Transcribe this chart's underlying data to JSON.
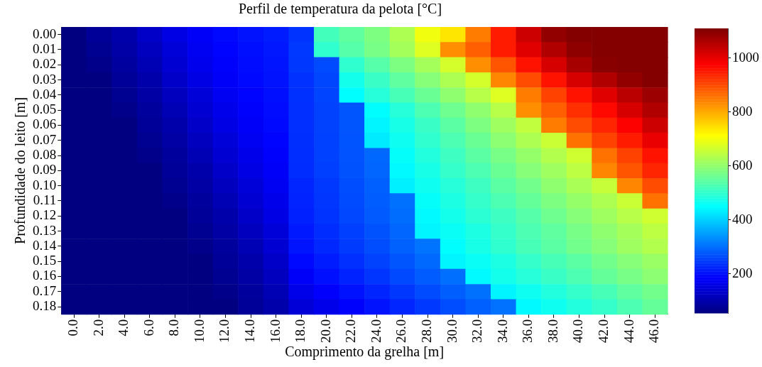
{
  "chart_data": {
    "type": "heatmap",
    "title": "Perfil de temperatura da pelota [°C]",
    "xlabel": "Comprimento da grelha [m]",
    "ylabel": "Profundidade do leito [m]",
    "categories": [
      "0.0",
      "2.0",
      "4.0",
      "6.0",
      "8.0",
      "10.0",
      "12.0",
      "14.0",
      "16.0",
      "18.0",
      "20.0",
      "22.0",
      "24.0",
      "26.0",
      "28.0",
      "30.0",
      "32.0",
      "34.0",
      "36.0",
      "38.0",
      "40.0",
      "42.0",
      "44.0",
      "46.0"
    ],
    "y_categories": [
      "0.00",
      "0.01",
      "0.02",
      "0.03",
      "0.04",
      "0.05",
      "0.06",
      "0.07",
      "0.08",
      "0.09",
      "0.10",
      "0.11",
      "0.12",
      "0.13",
      "0.14",
      "0.15",
      "0.16",
      "0.17",
      "0.18"
    ],
    "cells": [
      [
        57,
        80,
        100,
        130,
        160,
        180,
        195,
        205,
        215,
        240,
        520,
        550,
        580,
        630,
        700,
        740,
        850,
        950,
        1030,
        1090,
        1105,
        1105,
        1105,
        1105
      ],
      [
        57,
        73,
        95,
        120,
        148,
        173,
        190,
        201,
        211,
        245,
        500,
        540,
        575,
        620,
        680,
        830,
        880,
        950,
        1010,
        1060,
        1095,
        1105,
        1105,
        1105
      ],
      [
        57,
        66,
        87,
        110,
        140,
        167,
        185,
        198,
        208,
        244,
        264,
        500,
        540,
        580,
        620,
        670,
        830,
        890,
        960,
        1020,
        1070,
        1100,
        1105,
        1105
      ],
      [
        57,
        57,
        80,
        100,
        130,
        160,
        180,
        195,
        205,
        238,
        258,
        470,
        510,
        550,
        590,
        630,
        670,
        840,
        900,
        960,
        1020,
        1060,
        1090,
        1105
      ],
      [
        57,
        57,
        73,
        94,
        120,
        148,
        173,
        190,
        201,
        237,
        257,
        450,
        490,
        525,
        560,
        600,
        640,
        680,
        850,
        910,
        960,
        1010,
        1050,
        1080
      ],
      [
        57,
        57,
        66,
        86,
        110,
        140,
        166,
        185,
        198,
        235,
        255,
        275,
        450,
        490,
        530,
        565,
        600,
        640,
        830,
        880,
        930,
        970,
        1020,
        1060
      ],
      [
        57,
        57,
        57,
        80,
        100,
        130,
        160,
        180,
        195,
        235,
        255,
        275,
        440,
        475,
        510,
        545,
        580,
        615,
        650,
        850,
        900,
        940,
        980,
        1030
      ],
      [
        57,
        57,
        57,
        73,
        94,
        120,
        148,
        173,
        190,
        234,
        254,
        274,
        430,
        465,
        500,
        530,
        560,
        595,
        630,
        660,
        860,
        910,
        950,
        1000
      ],
      [
        57,
        57,
        57,
        66,
        86,
        110,
        140,
        166,
        185,
        233,
        253,
        273,
        293,
        455,
        485,
        515,
        545,
        575,
        605,
        635,
        665,
        860,
        910,
        960
      ],
      [
        57,
        57,
        57,
        57,
        80,
        100,
        130,
        160,
        180,
        232,
        252,
        272,
        292,
        445,
        475,
        505,
        530,
        560,
        590,
        615,
        645,
        840,
        890,
        940
      ],
      [
        57,
        57,
        57,
        57,
        73,
        94,
        120,
        148,
        173,
        225,
        245,
        265,
        285,
        435,
        465,
        490,
        515,
        545,
        570,
        600,
        625,
        655,
        840,
        900
      ],
      [
        57,
        57,
        57,
        57,
        66,
        86,
        110,
        140,
        166,
        223,
        243,
        263,
        283,
        303,
        455,
        480,
        505,
        530,
        555,
        580,
        605,
        630,
        660,
        860
      ],
      [
        57,
        57,
        57,
        57,
        57,
        80,
        100,
        130,
        160,
        220,
        240,
        260,
        280,
        300,
        445,
        470,
        495,
        515,
        540,
        565,
        590,
        615,
        640,
        665
      ],
      [
        57,
        57,
        57,
        57,
        57,
        73,
        94,
        120,
        148,
        212,
        232,
        252,
        272,
        292,
        440,
        460,
        480,
        505,
        530,
        550,
        575,
        600,
        620,
        645
      ],
      [
        57,
        57,
        57,
        57,
        57,
        66,
        86,
        110,
        140,
        207,
        227,
        247,
        267,
        287,
        307,
        450,
        475,
        500,
        525,
        545,
        570,
        590,
        615,
        635
      ],
      [
        57,
        57,
        57,
        57,
        57,
        57,
        80,
        100,
        130,
        195,
        215,
        235,
        255,
        275,
        295,
        440,
        460,
        480,
        505,
        525,
        545,
        570,
        590,
        610
      ],
      [
        57,
        57,
        57,
        57,
        57,
        57,
        73,
        94,
        120,
        182,
        202,
        222,
        242,
        262,
        282,
        302,
        445,
        470,
        490,
        510,
        530,
        555,
        575,
        595
      ],
      [
        57,
        57,
        57,
        57,
        57,
        57,
        66,
        86,
        110,
        164,
        184,
        204,
        224,
        244,
        264,
        284,
        304,
        440,
        465,
        485,
        505,
        525,
        550,
        570
      ],
      [
        57,
        57,
        57,
        57,
        57,
        57,
        57,
        80,
        100,
        145,
        165,
        185,
        205,
        225,
        245,
        265,
        285,
        305,
        445,
        465,
        485,
        505,
        530,
        555
      ]
    ],
    "clim": [
      55,
      1110
    ],
    "cticks": [
      200,
      400,
      600,
      800,
      1000
    ]
  }
}
